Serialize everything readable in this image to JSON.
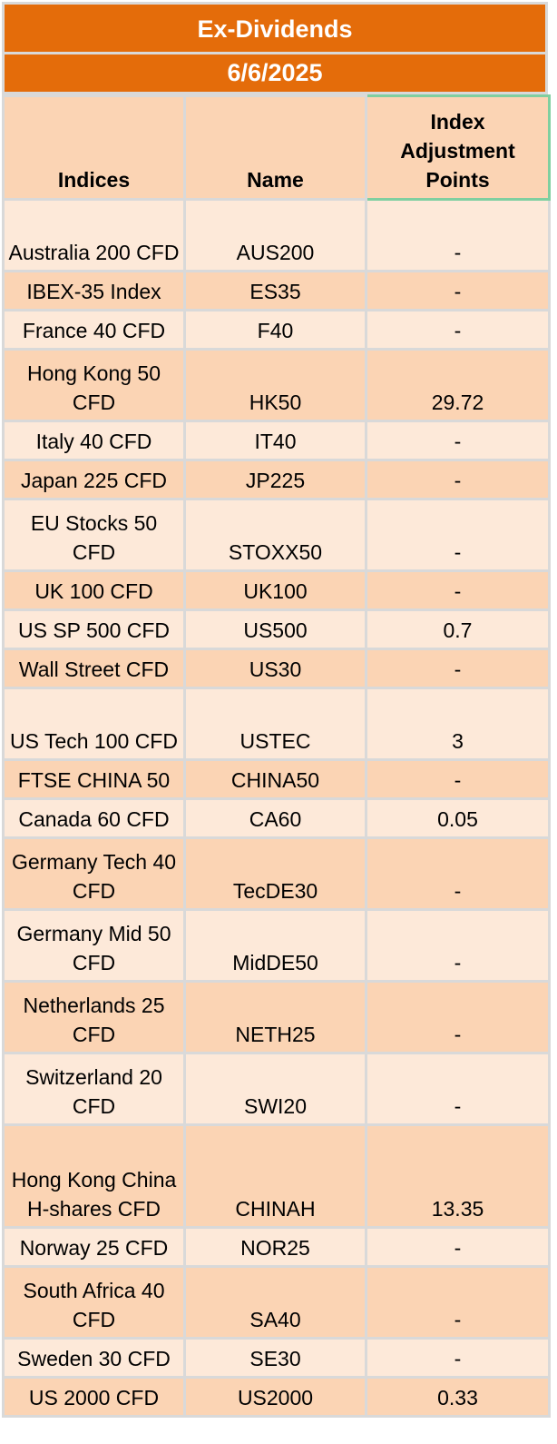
{
  "title": "Ex-Dividends",
  "date": "6/6/2025",
  "headers": {
    "indices": "Indices",
    "name": "Name",
    "adjustment": "Index Adjustment Points"
  },
  "colors": {
    "banner": "#e46c0a",
    "row_light": "#fde9d9",
    "row_dark": "#fbd4b4",
    "grid": "#d9d9d9",
    "selected_border": "#7fcfa0"
  },
  "rows": [
    {
      "index": "Australia 200 CFD",
      "name": "AUS200",
      "points": "-"
    },
    {
      "index": "IBEX-35 Index",
      "name": "ES35",
      "points": "-"
    },
    {
      "index": "France 40 CFD",
      "name": "F40",
      "points": "-"
    },
    {
      "index": "Hong Kong 50 CFD",
      "name": "HK50",
      "points": "29.72"
    },
    {
      "index": "Italy 40 CFD",
      "name": "IT40",
      "points": "-"
    },
    {
      "index": "Japan 225 CFD",
      "name": "JP225",
      "points": "-"
    },
    {
      "index": "EU Stocks 50 CFD",
      "name": "STOXX50",
      "points": "-"
    },
    {
      "index": "UK 100 CFD",
      "name": "UK100",
      "points": "-"
    },
    {
      "index": "US SP 500 CFD",
      "name": "US500",
      "points": "0.7"
    },
    {
      "index": "Wall Street CFD",
      "name": "US30",
      "points": "-"
    },
    {
      "index": "US Tech 100 CFD",
      "name": "USTEC",
      "points": "3"
    },
    {
      "index": "FTSE CHINA 50",
      "name": "CHINA50",
      "points": "-"
    },
    {
      "index": "Canada 60 CFD",
      "name": "CA60",
      "points": "0.05"
    },
    {
      "index": "Germany Tech 40 CFD",
      "name": "TecDE30",
      "points": "-"
    },
    {
      "index": "Germany Mid 50 CFD",
      "name": "MidDE50",
      "points": "-"
    },
    {
      "index": "Netherlands 25 CFD",
      "name": "NETH25",
      "points": "-"
    },
    {
      "index": "Switzerland 20 CFD",
      "name": "SWI20",
      "points": "-"
    },
    {
      "index": "Hong Kong China H-shares CFD",
      "name": "CHINAH",
      "points": "13.35"
    },
    {
      "index": "Norway 25 CFD",
      "name": "NOR25",
      "points": "-"
    },
    {
      "index": "South Africa 40 CFD",
      "name": "SA40",
      "points": "-"
    },
    {
      "index": "Sweden 30 CFD",
      "name": "SE30",
      "points": "-"
    },
    {
      "index": "US 2000 CFD",
      "name": "US2000",
      "points": "0.33"
    }
  ]
}
